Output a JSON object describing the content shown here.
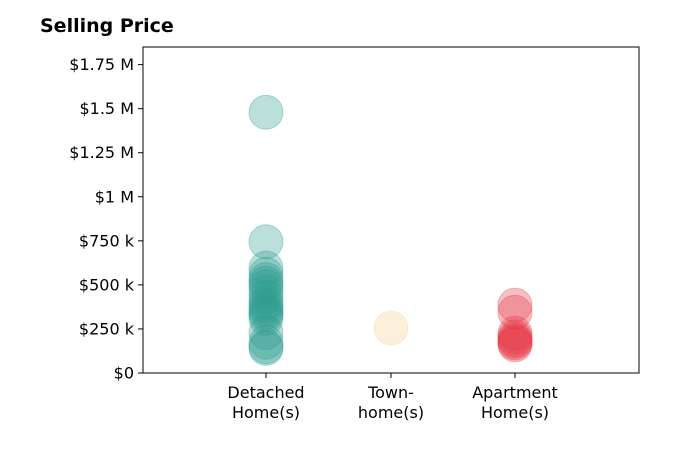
{
  "chart_data": {
    "type": "scatter",
    "title": "Selling Price",
    "xlabel": "",
    "ylabel": "",
    "categories": [
      "Detached\nHome(s)",
      "Town-\nhome(s)",
      "Apartment\nHome(s)"
    ],
    "ylim": [
      0,
      1850000
    ],
    "yticks": [
      {
        "value": 0,
        "label": "$0"
      },
      {
        "value": 250000,
        "label": "$250 k"
      },
      {
        "value": 500000,
        "label": "$500 k"
      },
      {
        "value": 750000,
        "label": "$750 k"
      },
      {
        "value": 1000000,
        "label": "$1 M"
      },
      {
        "value": 1250000,
        "label": "$1.25 M"
      },
      {
        "value": 1500000,
        "label": "$1.5 M"
      },
      {
        "value": 1750000,
        "label": "$1.75 M"
      }
    ],
    "grid": false,
    "series": [
      {
        "category": "Detached\nHome(s)",
        "color": "#2a9d8f",
        "values": [
          1480000,
          745000,
          595000,
          560000,
          530000,
          510000,
          490000,
          460000,
          430000,
          400000,
          380000,
          360000,
          345000,
          330000,
          310000,
          230000,
          175000,
          150000,
          140000
        ]
      },
      {
        "category": "Town-\nhome(s)",
        "color": "#f4d58d",
        "values": [
          255000
        ]
      },
      {
        "category": "Apartment\nHome(s)",
        "color": "#e63946",
        "values": [
          385000,
          345000,
          225000,
          205000,
          190000,
          180000,
          170000,
          160000
        ]
      }
    ]
  }
}
